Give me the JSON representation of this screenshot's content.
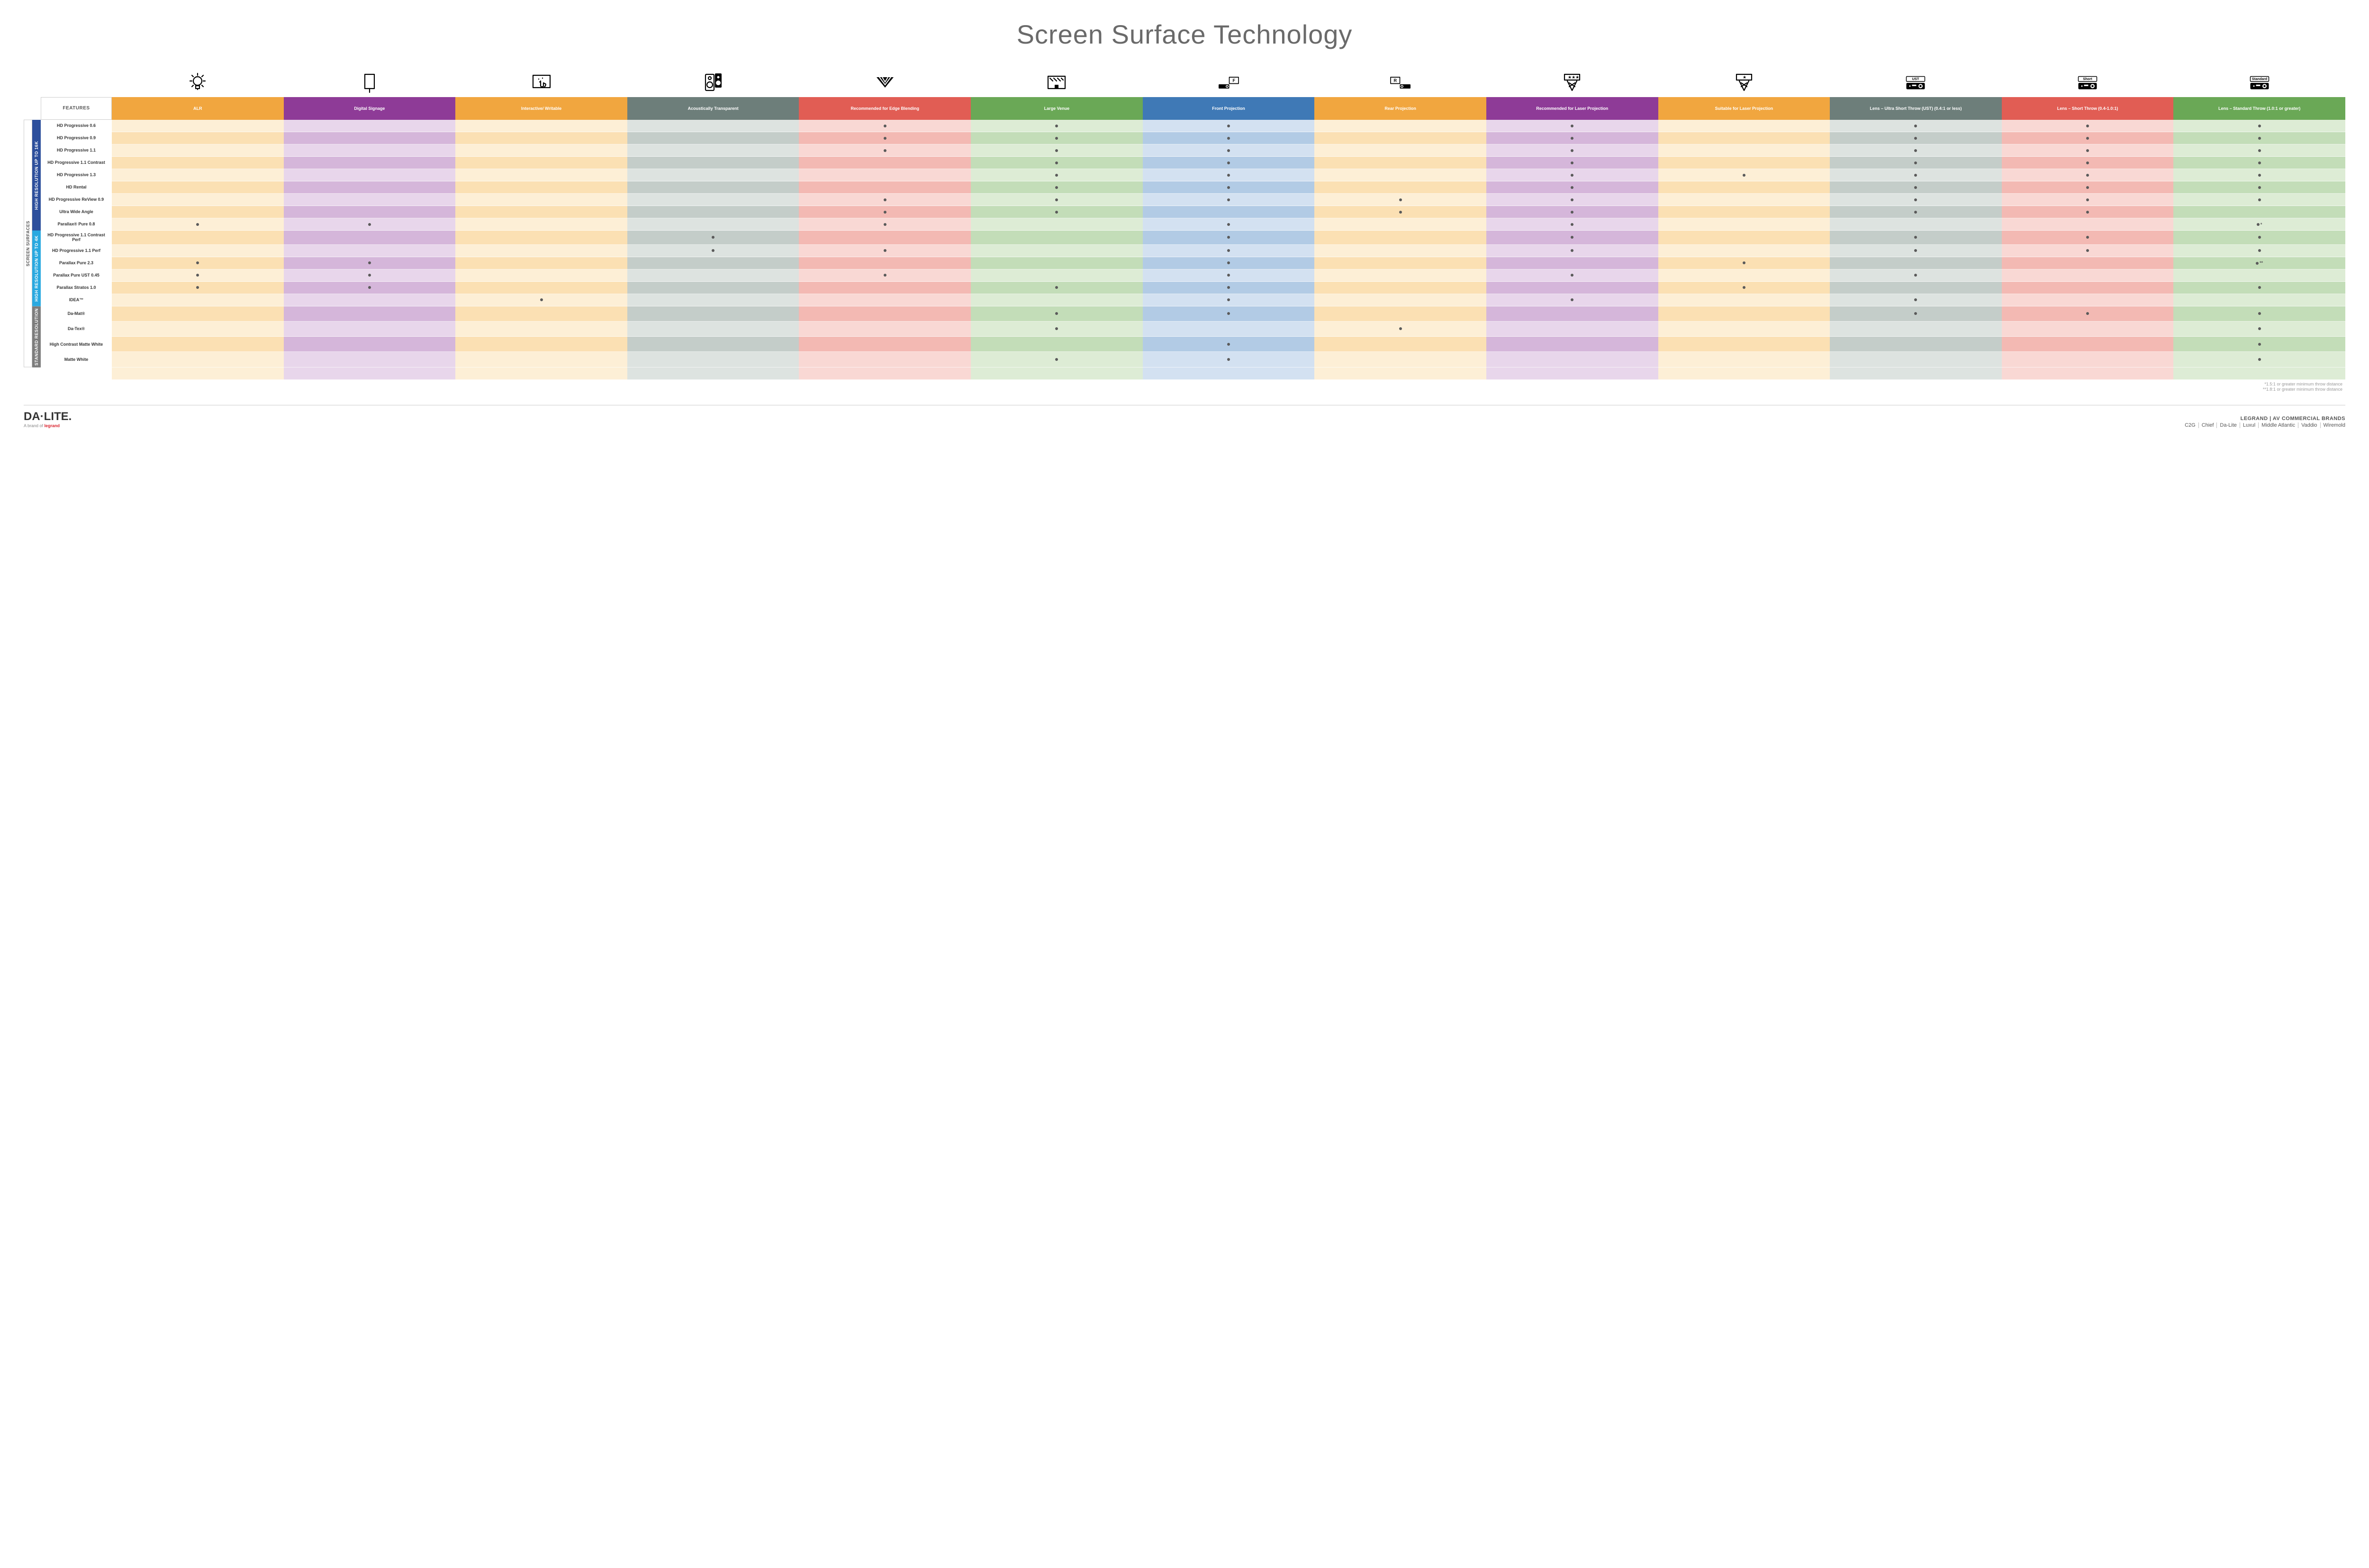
{
  "title": "Screen Surface Technology",
  "columns": [
    {
      "key": "alr",
      "label": "ALR",
      "color": "#f1a63f",
      "light": "#fbe0b3",
      "lighter": "#fdefd6"
    },
    {
      "key": "signage",
      "label": "Digital Signage",
      "color": "#8e3b97",
      "light": "#d5b6da",
      "lighter": "#e8d6eb"
    },
    {
      "key": "writable",
      "label": "Interactive/ Writable",
      "color": "#f1a63f",
      "light": "#fbe0b3",
      "lighter": "#fdefd6"
    },
    {
      "key": "acoustic",
      "label": "Acoustically Transparent",
      "color": "#6d7e7a",
      "light": "#c4cdc9",
      "lighter": "#dde3e0"
    },
    {
      "key": "edge",
      "label": "Recommended for Edge Blending",
      "color": "#e15d54",
      "light": "#f3b9b3",
      "lighter": "#f9d8d4"
    },
    {
      "key": "large",
      "label": "Large Venue",
      "color": "#6aa856",
      "light": "#c3ddb8",
      "lighter": "#ddecd5"
    },
    {
      "key": "front",
      "label": "Front Projection",
      "color": "#3f79b6",
      "light": "#b2cbe5",
      "lighter": "#d3e1f1"
    },
    {
      "key": "rear",
      "label": "Rear Projection",
      "color": "#f1a63f",
      "light": "#fbe0b3",
      "lighter": "#fdefd6"
    },
    {
      "key": "reclaser",
      "label": "Recommended for Laser Projection",
      "color": "#8e3b97",
      "light": "#d5b6da",
      "lighter": "#e8d6eb"
    },
    {
      "key": "suitlaser",
      "label": "Suitable for Laser Projection",
      "color": "#f1a63f",
      "light": "#fbe0b3",
      "lighter": "#fdefd6"
    },
    {
      "key": "ust",
      "label": "Lens – Ultra Short Throw (UST) (0.4:1 or less)",
      "color": "#6d7e7a",
      "light": "#c4cdc9",
      "lighter": "#dde3e0"
    },
    {
      "key": "short",
      "label": "Lens – Short Throw (0.4-1.0:1)",
      "color": "#e15d54",
      "light": "#f3b9b3",
      "lighter": "#f9d8d4"
    },
    {
      "key": "std",
      "label": "Lens – Standard Throw (1.0:1 or greater)",
      "color": "#6aa856",
      "light": "#c3ddb8",
      "lighter": "#ddecd5"
    }
  ],
  "features_header": "FEATURES",
  "side_outer": "SCREEN SURFACES",
  "groups": [
    {
      "key": "g16k",
      "label": "HIGH RESOLUTION UP TO 16K",
      "color": "#2d4f9c",
      "rows": 9
    },
    {
      "key": "g4k",
      "label": "HIGH RESOLUTION UP TO 4K",
      "color": "#2aa9e0",
      "rows": 6
    },
    {
      "key": "gstd",
      "label": "STANDARD RESOLUTION",
      "color": "#7d7d7d",
      "rows": 4
    }
  ],
  "rows": [
    {
      "label": "HD Progressive 0.6",
      "cells": {
        "edge": "•",
        "large": "•",
        "front": "•",
        "reclaser": "•",
        "ust": "•",
        "short": "•",
        "std": "•"
      }
    },
    {
      "label": "HD Progressive 0.9",
      "cells": {
        "edge": "•",
        "large": "•",
        "front": "•",
        "reclaser": "•",
        "ust": "•",
        "short": "•",
        "std": "•"
      }
    },
    {
      "label": "HD Progressive 1.1",
      "cells": {
        "edge": "•",
        "large": "•",
        "front": "•",
        "reclaser": "•",
        "ust": "•",
        "short": "•",
        "std": "•"
      }
    },
    {
      "label": "HD Progressive 1.1 Contrast",
      "cells": {
        "large": "•",
        "front": "•",
        "reclaser": "•",
        "ust": "•",
        "short": "•",
        "std": "•"
      }
    },
    {
      "label": "HD Progressive 1.3",
      "cells": {
        "large": "•",
        "front": "•",
        "reclaser": "•",
        "suitlaser": "•",
        "ust": "•",
        "short": "•",
        "std": "•"
      }
    },
    {
      "label": "HD Rental",
      "cells": {
        "large": "•",
        "front": "•",
        "reclaser": "•",
        "ust": "•",
        "short": "•",
        "std": "•"
      }
    },
    {
      "label": "HD Progressive ReView 0.9",
      "cells": {
        "edge": "•",
        "large": "•",
        "front": "•",
        "rear": "•",
        "reclaser": "•",
        "ust": "•",
        "short": "•",
        "std": "•"
      }
    },
    {
      "label": "Ultra Wide Angle",
      "cells": {
        "edge": "•",
        "large": "•",
        "rear": "•",
        "reclaser": "•",
        "ust": "•",
        "short": "•"
      }
    },
    {
      "label": "Parallax® Pure 0.8",
      "cells": {
        "alr": "•",
        "signage": "•",
        "edge": "•",
        "front": "•",
        "reclaser": "•",
        "std": "•*"
      }
    },
    {
      "label": "HD Progressive 1.1 Contrast Perf",
      "cells": {
        "acoustic": "•",
        "front": "•",
        "reclaser": "•",
        "ust": "•",
        "short": "•",
        "std": "•"
      }
    },
    {
      "label": "HD Progressive 1.1 Perf",
      "cells": {
        "acoustic": "•",
        "edge": "•",
        "front": "•",
        "reclaser": "•",
        "ust": "•",
        "short": "•",
        "std": "•"
      }
    },
    {
      "label": "Parallax Pure 2.3",
      "cells": {
        "alr": "•",
        "signage": "•",
        "front": "•",
        "suitlaser": "•",
        "std": "•**"
      }
    },
    {
      "label": "Parallax Pure UST 0.45",
      "cells": {
        "alr": "•",
        "signage": "•",
        "edge": "•",
        "front": "•",
        "reclaser": "•",
        "ust": "•"
      }
    },
    {
      "label": "Parallax Stratos 1.0",
      "cells": {
        "alr": "•",
        "signage": "•",
        "large": "•",
        "front": "•",
        "suitlaser": "•",
        "std": "•"
      }
    },
    {
      "label": "IDEA™",
      "cells": {
        "writable": "•",
        "front": "•",
        "reclaser": "•",
        "ust": "•"
      }
    },
    {
      "label": "Da-Mat®",
      "cells": {
        "large": "•",
        "front": "•",
        "ust": "•",
        "short": "•",
        "std": "•"
      }
    },
    {
      "label": "Da-Tex®",
      "cells": {
        "large": "•",
        "rear": "•",
        "std": "•"
      }
    },
    {
      "label": "High Contrast Matte White",
      "cells": {
        "front": "•",
        "std": "•"
      }
    },
    {
      "label": "Matte White",
      "cells": {
        "large": "•",
        "front": "•",
        "std": "•"
      }
    }
  ],
  "footnotes": [
    "*1.5:1 or greater minimum throw distance",
    "**1.8:1 or greater minimum throw distance"
  ],
  "footer": {
    "logo_main": "DA·LITE.",
    "logo_sub_prefix": "A brand of ",
    "logo_sub_brand": "legrand",
    "right_top": "LEGRAND | AV COMMERCIAL BRANDS",
    "right_list": [
      "C2G",
      "Chief",
      "Da-Lite",
      "Luxul",
      "Middle Atlantic",
      "Vaddio",
      "Wiremold"
    ]
  },
  "icons": {
    "alr": "bulb",
    "signage": "signage",
    "writable": "touch",
    "acoustic": "speaker",
    "edge": "tri",
    "large": "stage",
    "front": "projF",
    "rear": "projR",
    "reclaser": "laser3",
    "suitlaser": "laser1",
    "ust": "projUST",
    "short": "projShort",
    "std": "projStd"
  }
}
